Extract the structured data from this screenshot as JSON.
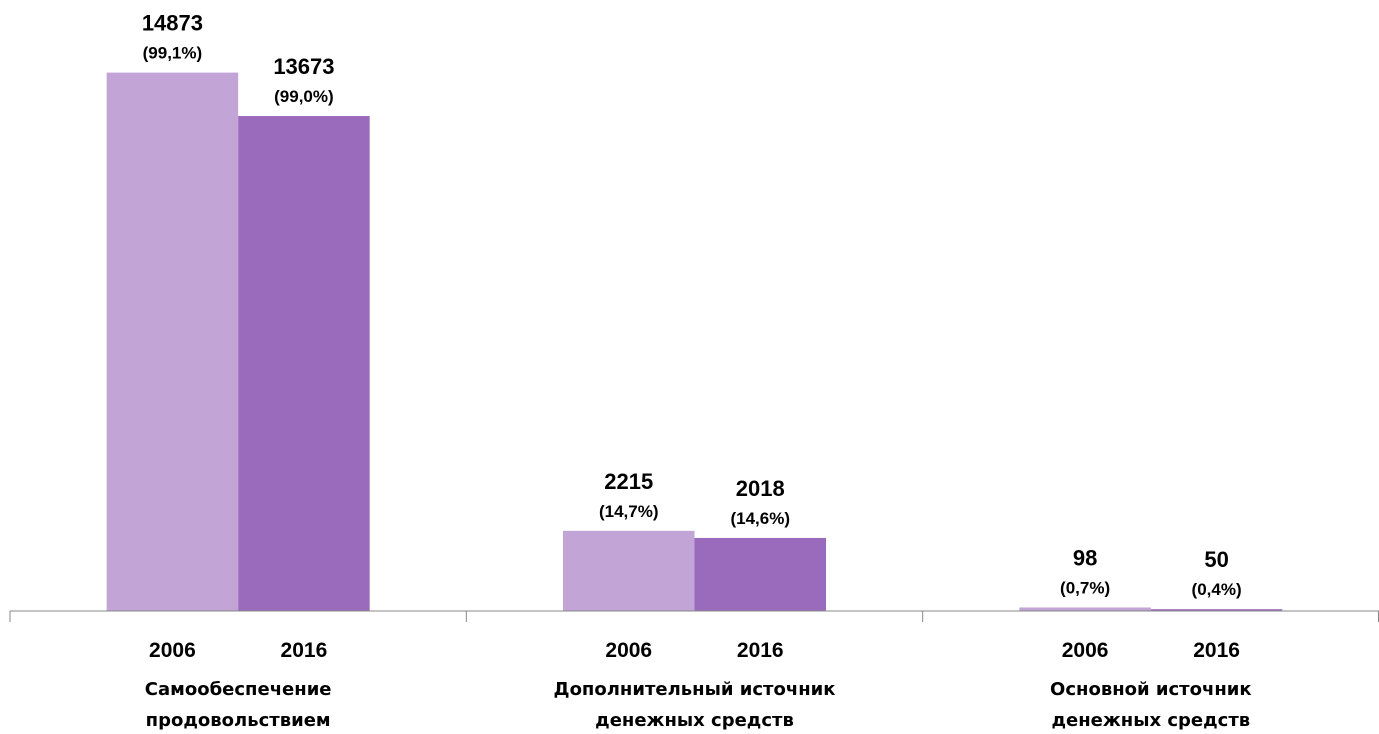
{
  "chart_data": {
    "type": "bar",
    "categories": [
      "Самообеспечение\nпродовольствием",
      "Дополнительный источник\nденежных средств",
      "Основной источник\nденежных средств"
    ],
    "series": [
      {
        "name": "2006",
        "color": "#c2a5d6",
        "values": [
          14873,
          2215,
          98
        ],
        "percent_labels": [
          "(99,1%)",
          "(14,7%)",
          "(0,7%)"
        ]
      },
      {
        "name": "2016",
        "color": "#9a6bbd",
        "values": [
          13673,
          2018,
          50
        ],
        "percent_labels": [
          "(99,0%)",
          "(14,6%)",
          "(0,4%)"
        ]
      }
    ],
    "ylim": [
      0,
      15000
    ]
  }
}
